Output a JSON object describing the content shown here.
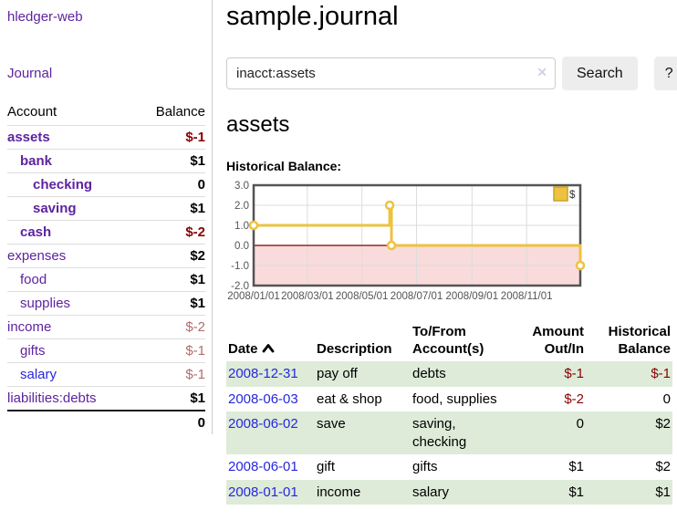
{
  "app": {
    "title": "hledger-web"
  },
  "sidebar": {
    "journal_link": "Journal",
    "table": {
      "account_header": "Account",
      "balance_header": "Balance",
      "accounts": [
        {
          "name": "assets",
          "balance": "$-1",
          "indent": 0,
          "bold": true,
          "negative": "strong"
        },
        {
          "name": "bank",
          "balance": "$1",
          "indent": 1,
          "bold": true,
          "negative": "none"
        },
        {
          "name": "checking",
          "balance": "0",
          "indent": 2,
          "bold": true,
          "negative": "none"
        },
        {
          "name": "saving",
          "balance": "$1",
          "indent": 2,
          "bold": true,
          "negative": "none"
        },
        {
          "name": "cash",
          "balance": "$-2",
          "indent": 1,
          "bold": true,
          "negative": "strong"
        },
        {
          "name": "expenses",
          "balance": "$2",
          "indent": 0,
          "bold": false,
          "negative": "none"
        },
        {
          "name": "food",
          "balance": "$1",
          "indent": 1,
          "bold": false,
          "negative": "none"
        },
        {
          "name": "supplies",
          "balance": "$1",
          "indent": 1,
          "bold": false,
          "negative": "none"
        },
        {
          "name": "income",
          "balance": "$-2",
          "indent": 0,
          "bold": false,
          "negative": "faded"
        },
        {
          "name": "gifts",
          "balance": "$-1",
          "indent": 1,
          "bold": false,
          "negative": "faded"
        },
        {
          "name": "salary",
          "balance": "$-1",
          "indent": 1,
          "bold": false,
          "negative": "faded",
          "link_color": "blue"
        },
        {
          "name": "liabilities:debts",
          "balance": "$1",
          "indent": 0,
          "bold": false,
          "negative": "none"
        }
      ],
      "total": "0"
    }
  },
  "header": {
    "title": "sample.journal"
  },
  "search": {
    "value": "inacct:assets",
    "clear_icon": "✕",
    "button_label": "Search",
    "help_label": "?"
  },
  "main": {
    "account_heading": "assets",
    "chart_label": "Historical Balance:"
  },
  "chart_data": {
    "type": "line",
    "title": "Historical Balance",
    "step": true,
    "series": [
      {
        "name": "$",
        "color": "#edc240",
        "points": [
          [
            "2008-01-01",
            1
          ],
          [
            "2008-06-01",
            2
          ],
          [
            "2008-06-03",
            0
          ],
          [
            "2008-12-31",
            -1
          ]
        ]
      }
    ],
    "x_ticks": [
      "2008/01/01",
      "2008/03/01",
      "2008/05/01",
      "2008/07/01",
      "2008/09/01",
      "2008/11/01"
    ],
    "y_ticks": [
      3.0,
      2.0,
      1.0,
      0.0,
      -1.0,
      -2.0
    ],
    "ylim": [
      -2,
      3
    ],
    "xlim": [
      "2008-01-01",
      "2008-12-31"
    ],
    "grid": true,
    "negative_region_color": "#fadbdb",
    "zero_line_color": "#7d0000",
    "legend": {
      "label": "$",
      "position": "top-right",
      "swatch_color": "#edc240",
      "swatch_border": "#c9a227"
    }
  },
  "register": {
    "headers": {
      "date": "Date",
      "description": "Description",
      "tofrom_line1": "To/From",
      "tofrom_line2": "Account(s)",
      "amount_line1": "Amount",
      "amount_line2": "Out/In",
      "balance_line1": "Historical",
      "balance_line2": "Balance"
    },
    "rows": [
      {
        "date": "2008-12-31",
        "description": "pay off",
        "accounts": "debts",
        "amount": "$-1",
        "amount_negative": true,
        "balance": "$-1",
        "balance_negative": true
      },
      {
        "date": "2008-06-03",
        "description": "eat & shop",
        "accounts": "food, supplies",
        "amount": "$-2",
        "amount_negative": true,
        "balance": "0",
        "balance_negative": false
      },
      {
        "date": "2008-06-02",
        "description": "save",
        "accounts": "saving, checking",
        "amount": "0",
        "amount_negative": false,
        "balance": "$2",
        "balance_negative": false
      },
      {
        "date": "2008-06-01",
        "description": "gift",
        "accounts": "gifts",
        "amount": "$1",
        "amount_negative": false,
        "balance": "$2",
        "balance_negative": false
      },
      {
        "date": "2008-01-01",
        "description": "income",
        "accounts": "salary",
        "amount": "$1",
        "amount_negative": false,
        "balance": "$1",
        "balance_negative": false
      }
    ]
  },
  "colors": {
    "accent_purple": "#5e23a0",
    "link_blue": "#2727dd",
    "negative_strong": "#8b0000",
    "negative_faded": "#b26d6d",
    "row_stripe_green": "#ddebd8",
    "chart_line_yellow": "#edc240"
  }
}
